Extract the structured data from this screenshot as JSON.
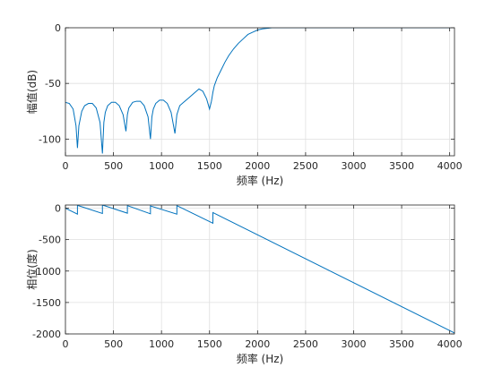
{
  "chart_data": [
    {
      "type": "line",
      "xlabel": "频率 (Hz)",
      "ylabel": "幅值(dB)",
      "xlim": [
        0,
        4050
      ],
      "ylim": [
        -115,
        0
      ],
      "xticks": [
        0,
        500,
        1000,
        1500,
        2000,
        2500,
        3000,
        3500,
        4000
      ],
      "yticks": [
        0,
        -50,
        -100
      ],
      "grid": true,
      "series": [
        {
          "color": "#0072BD",
          "x": [
            0,
            40,
            80,
            110,
            125,
            140,
            170,
            200,
            240,
            280,
            320,
            360,
            385,
            400,
            415,
            440,
            480,
            520,
            560,
            600,
            630,
            645,
            660,
            700,
            740,
            780,
            820,
            860,
            885,
            900,
            915,
            940,
            980,
            1020,
            1060,
            1100,
            1140,
            1160,
            1175,
            1190,
            1230,
            1270,
            1310,
            1350,
            1390,
            1430,
            1470,
            1500,
            1520,
            1535,
            1550,
            1580,
            1620,
            1660,
            1700,
            1750,
            1800,
            1850,
            1900,
            1950,
            2000,
            2050,
            2100,
            2150,
            2200,
            2250,
            2300,
            2400,
            2600,
            2800,
            3000,
            3200,
            3400,
            3600,
            3800,
            4000,
            4050
          ],
          "y": [
            -67,
            -68,
            -73,
            -88,
            -108,
            -88,
            -75,
            -70,
            -68,
            -68,
            -72,
            -85,
            -113,
            -85,
            -76,
            -70,
            -67,
            -67,
            -70,
            -78,
            -93,
            -78,
            -72,
            -67,
            -66,
            -66,
            -70,
            -80,
            -100,
            -80,
            -73,
            -68,
            -65,
            -65,
            -68,
            -76,
            -95,
            -78,
            -74,
            -70,
            -67,
            -64,
            -61,
            -58,
            -55,
            -57,
            -64,
            -73,
            -66,
            -58,
            -52,
            -45,
            -38,
            -31,
            -25,
            -19,
            -14,
            -10,
            -6,
            -4,
            -2,
            -1,
            -0.5,
            0,
            0,
            0,
            0,
            0,
            0,
            0,
            0,
            0,
            0,
            0,
            0,
            0,
            0
          ]
        }
      ]
    },
    {
      "type": "line",
      "xlabel": "频率 (Hz)",
      "ylabel": "相位(度)",
      "xlim": [
        0,
        4050
      ],
      "ylim": [
        -2000,
        50
      ],
      "xticks": [
        0,
        500,
        1000,
        1500,
        2000,
        2500,
        3000,
        3500,
        4000
      ],
      "yticks": [
        0,
        -500,
        -1000,
        -1500,
        -2000
      ],
      "grid": true,
      "series": [
        {
          "color": "#0072BD",
          "x": [
            0,
            125,
            125,
            385,
            385,
            645,
            645,
            885,
            885,
            1160,
            1160,
            1535,
            1535,
            4050
          ],
          "y": [
            0,
            -95,
            45,
            -85,
            50,
            -80,
            40,
            -90,
            35,
            -95,
            40,
            -240,
            -70,
            -1985
          ]
        }
      ]
    }
  ]
}
